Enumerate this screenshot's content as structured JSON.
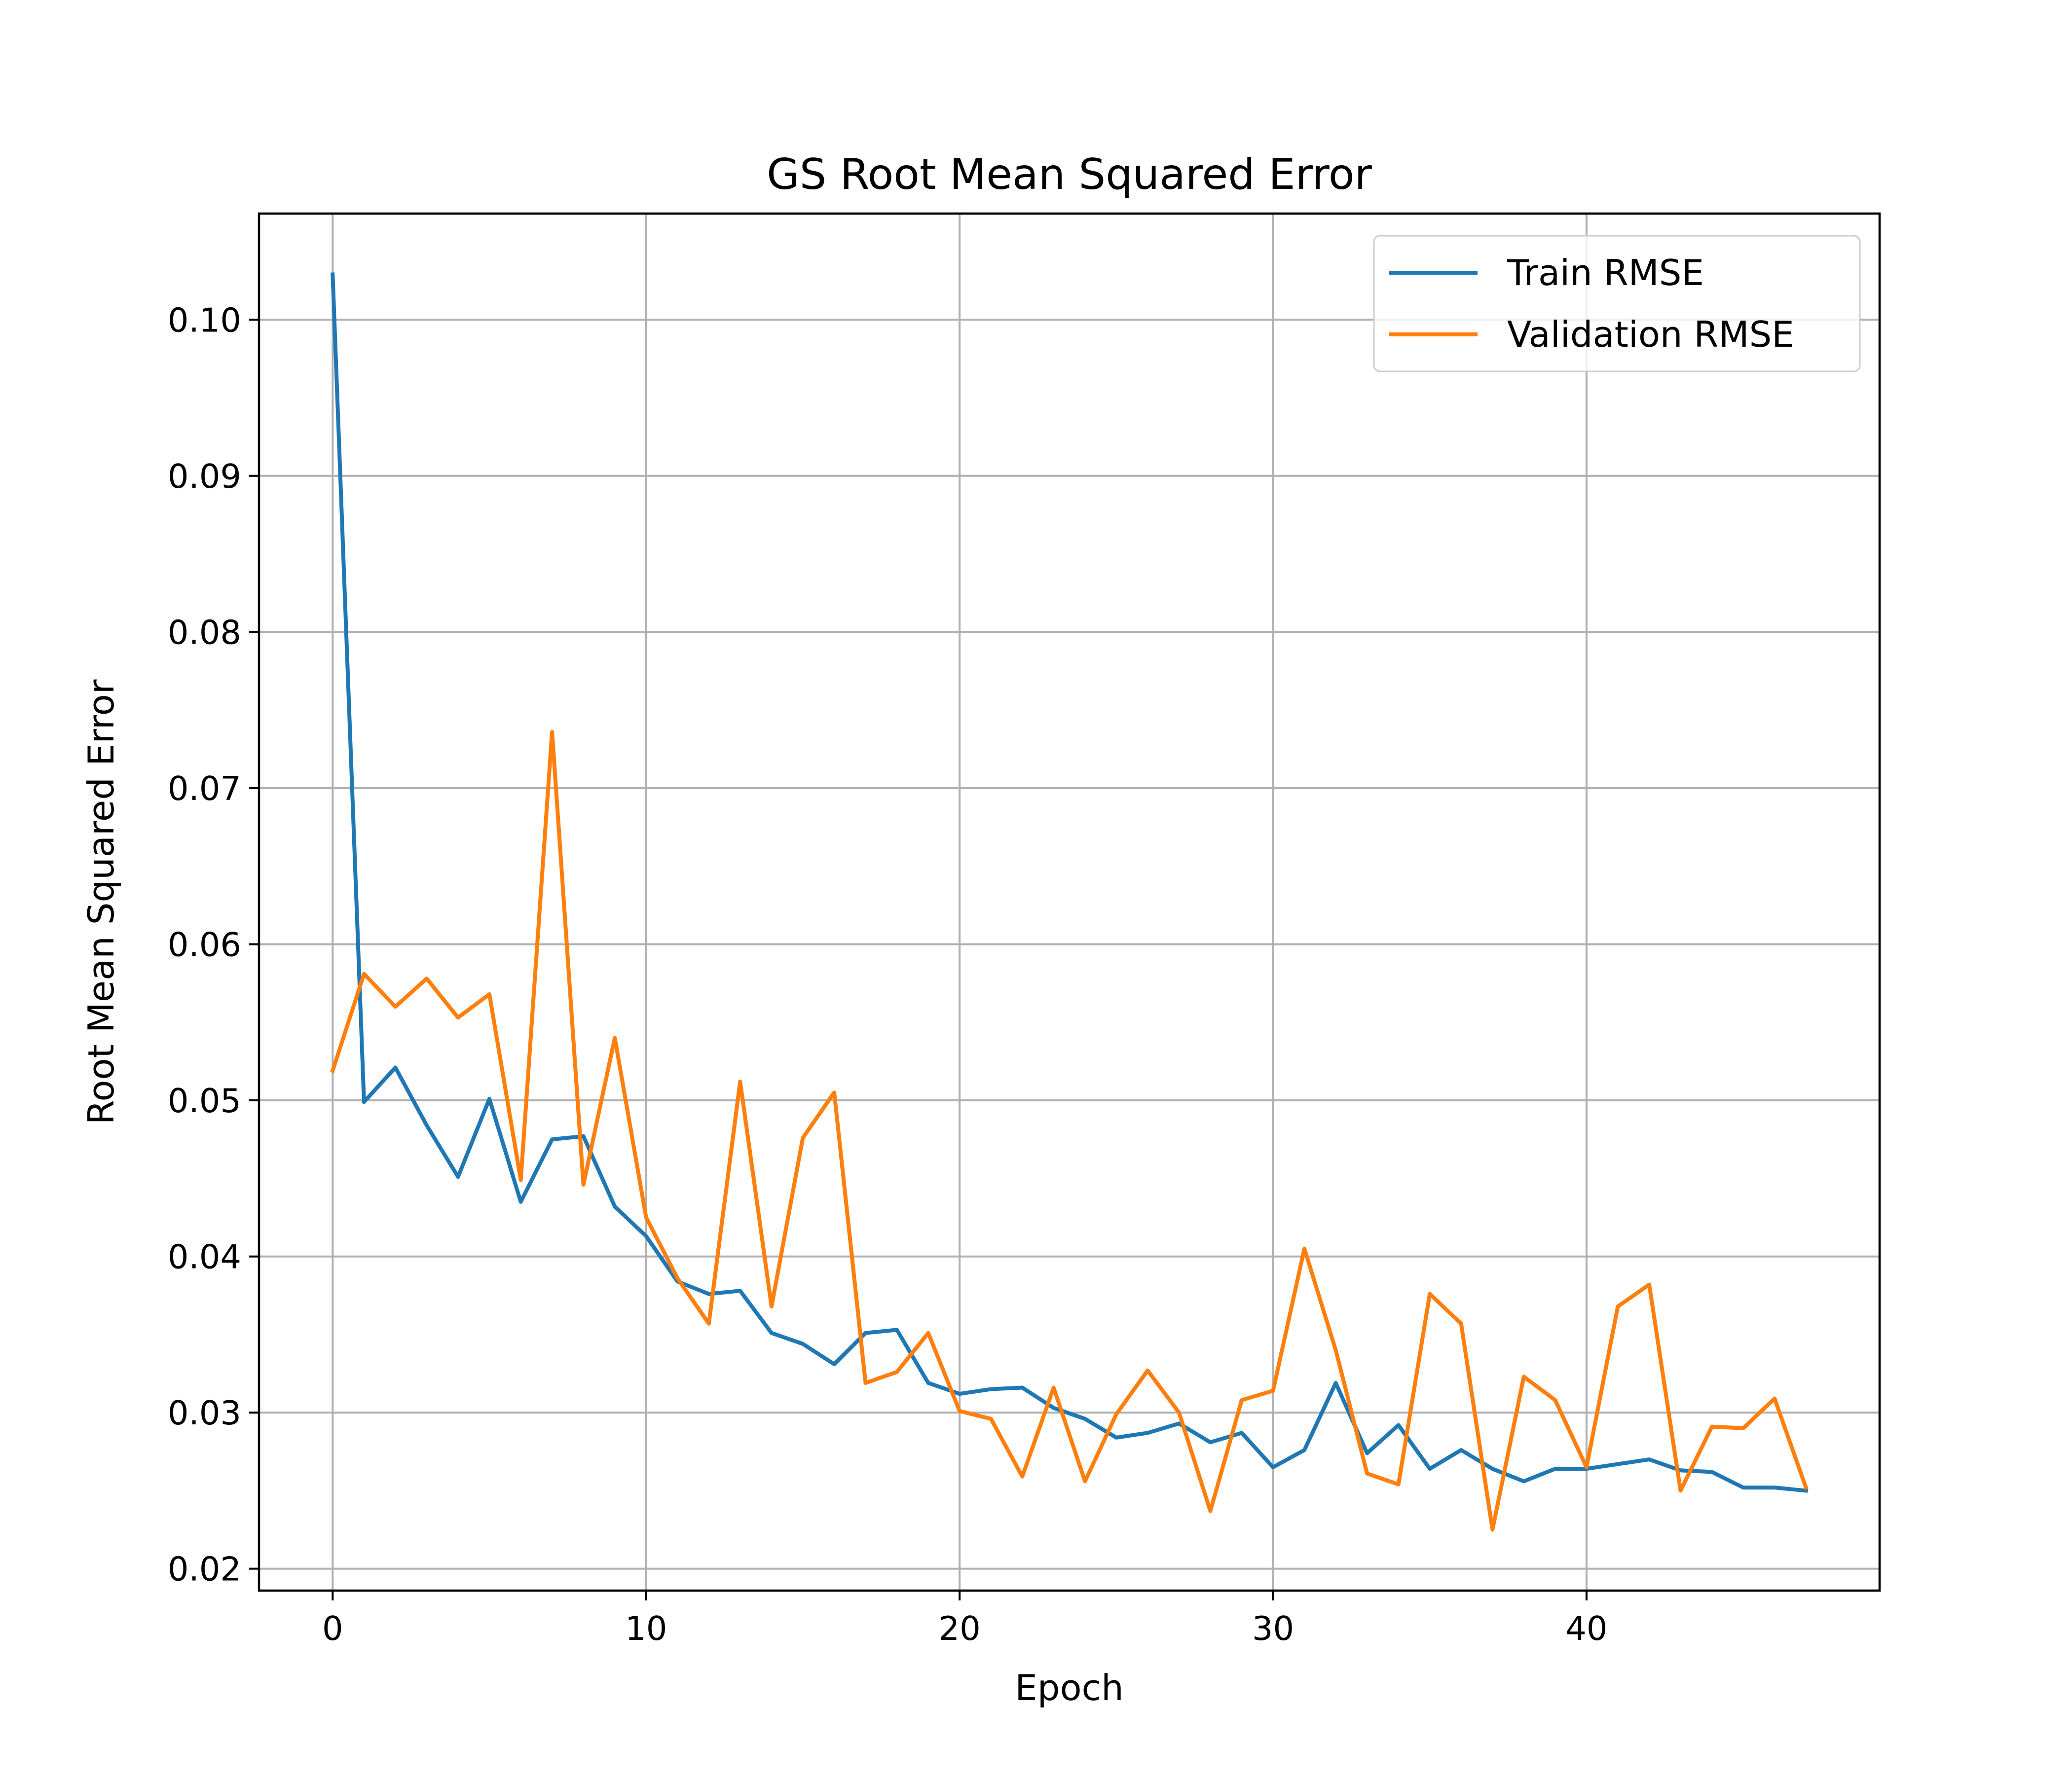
{
  "chart_data": {
    "type": "line",
    "title": "GS Root Mean Squared Error",
    "xlabel": "Epoch",
    "ylabel": "Root Mean Squared Error",
    "xlim": [
      -2.35,
      49.35
    ],
    "ylim": [
      0.0186,
      0.1068
    ],
    "xticks": [
      0,
      10,
      20,
      30,
      40
    ],
    "yticks": [
      0.02,
      0.03,
      0.04,
      0.05,
      0.06,
      0.07,
      0.08,
      0.09,
      0.1
    ],
    "ytick_labels": [
      "0.02",
      "0.03",
      "0.04",
      "0.05",
      "0.06",
      "0.07",
      "0.08",
      "0.09",
      "0.10"
    ],
    "grid": true,
    "legend_position": "top-right",
    "x": [
      0,
      1,
      2,
      3,
      4,
      5,
      6,
      7,
      8,
      9,
      10,
      11,
      12,
      13,
      14,
      15,
      16,
      17,
      18,
      19,
      20,
      21,
      22,
      23,
      24,
      25,
      26,
      27,
      28,
      29,
      30,
      31,
      32,
      33,
      34,
      35,
      36,
      37,
      38,
      39,
      40,
      41,
      42,
      43,
      44,
      45,
      46,
      47
    ],
    "series": [
      {
        "name": "Train RMSE",
        "color": "#1f77b4",
        "values": [
          0.1029,
          0.0499,
          0.0521,
          0.0484,
          0.0451,
          0.0501,
          0.0435,
          0.0475,
          0.0477,
          0.0432,
          0.0413,
          0.0384,
          0.0376,
          0.0378,
          0.0351,
          0.0344,
          0.0331,
          0.0351,
          0.0353,
          0.0319,
          0.0312,
          0.0315,
          0.0316,
          0.0303,
          0.0296,
          0.0284,
          0.0287,
          0.0293,
          0.0281,
          0.0287,
          0.0265,
          0.0276,
          0.0319,
          0.0274,
          0.0292,
          0.0264,
          0.0276,
          0.0264,
          0.0256,
          0.0264,
          0.0264,
          0.0267,
          0.027,
          0.0263,
          0.0262,
          0.0252,
          0.0252,
          0.025
        ]
      },
      {
        "name": "Validation RMSE",
        "color": "#ff7f0e",
        "values": [
          0.0519,
          0.0581,
          0.056,
          0.0578,
          0.0553,
          0.0568,
          0.0449,
          0.0736,
          0.0446,
          0.054,
          0.0425,
          0.0386,
          0.0357,
          0.0512,
          0.0368,
          0.0476,
          0.0505,
          0.0319,
          0.0326,
          0.0351,
          0.0301,
          0.0296,
          0.0259,
          0.0316,
          0.0256,
          0.0299,
          0.0327,
          0.03,
          0.0237,
          0.0308,
          0.0314,
          0.0405,
          0.034,
          0.0261,
          0.0254,
          0.0376,
          0.0357,
          0.0225,
          0.0323,
          0.0308,
          0.0265,
          0.0368,
          0.0382,
          0.025,
          0.0291,
          0.029,
          0.0309,
          0.0252
        ]
      }
    ]
  }
}
